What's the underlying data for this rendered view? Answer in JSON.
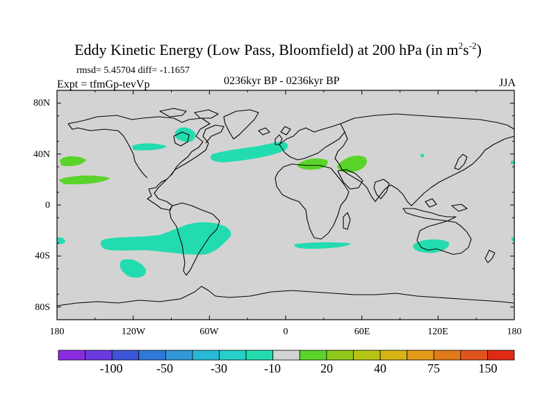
{
  "title": {
    "main": "Eddy Kinetic Energy (Low Pass, Bloomfield) at 200 hPa (in m",
    "sup1": "2",
    "mid": "s",
    "sup2": "-2",
    "end": ")"
  },
  "stats": "rmsd= 5.45704 diff= -1.1657",
  "experiment": "Expt = tfmGp-tevVp",
  "period": "0236kyr BP - 0236kyr BP",
  "season": "JJA",
  "map": {
    "projection": "cylindrical-equidistant",
    "lon_range": [
      -180,
      180
    ],
    "lat_range": [
      -90,
      90
    ],
    "y_ticks": [
      "80N",
      "40N",
      "0",
      "40S",
      "80S"
    ],
    "x_ticks": [
      "180",
      "120W",
      "60W",
      "0",
      "60E",
      "120E",
      "180"
    ],
    "background_fill": "#d3d3d3",
    "coastline_color": "#000000"
  },
  "colorbar": {
    "colors": [
      "#8a2be2",
      "#6a3ae0",
      "#3d55d8",
      "#2f79d8",
      "#3299d8",
      "#29b8d6",
      "#26d0c8",
      "#22dcb0",
      "#d3d3d3",
      "#5ad42a",
      "#8ec81a",
      "#b5c414",
      "#d4b414",
      "#e29a18",
      "#e07a1a",
      "#e0551c",
      "#e02a14"
    ],
    "labels": [
      "-100",
      "-50",
      "-30",
      "-10",
      "20",
      "40",
      "75",
      "150"
    ]
  },
  "anomalies": [
    {
      "name": "north-atlantic-band",
      "color": "#22dcb0"
    },
    {
      "name": "hudson-bay-patch",
      "color": "#22dcb0"
    },
    {
      "name": "north-pacific-east",
      "color": "#22dcb0"
    },
    {
      "name": "south-pacific-atlantic-band",
      "color": "#22dcb0"
    },
    {
      "name": "south-pacific-south",
      "color": "#22dcb0"
    },
    {
      "name": "south-indian-ocean",
      "color": "#22dcb0"
    },
    {
      "name": "south-australia",
      "color": "#22dcb0"
    },
    {
      "name": "mediterranean",
      "color": "#5ad42a"
    },
    {
      "name": "middle-east",
      "color": "#5ad42a"
    },
    {
      "name": "north-pacific-west",
      "color": "#5ad42a"
    },
    {
      "name": "subtropical-pacific",
      "color": "#5ad42a"
    }
  ]
}
